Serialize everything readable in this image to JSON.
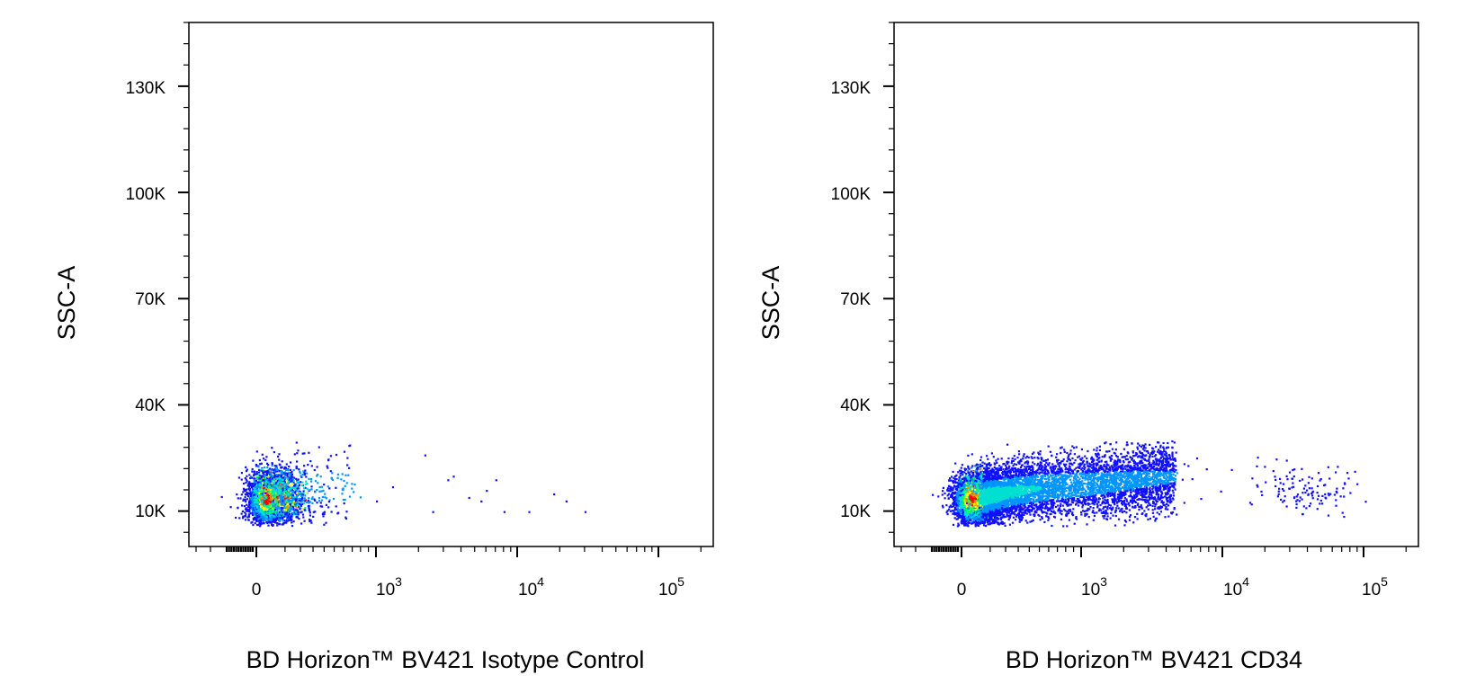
{
  "chart_data": [
    {
      "type": "scatter",
      "ylabel": "SSC-A",
      "xlabel": "BD Horizon™ BV421 Isotype Control",
      "y_ticks": [
        "130K",
        "100K",
        "70K",
        "40K",
        "10K"
      ],
      "x_ticks": [
        {
          "base": "0",
          "exp": ""
        },
        {
          "base": "10",
          "exp": "3"
        },
        {
          "base": "10",
          "exp": "4"
        },
        {
          "base": "10",
          "exp": "5"
        }
      ],
      "xscale": "biexponential",
      "ylim": [
        0,
        148000
      ],
      "colormap": [
        "#0000ff",
        "#00bfff",
        "#00ff80",
        "#ffff00",
        "#ff0000"
      ],
      "populations": [
        {
          "name": "main",
          "x_center": 15,
          "y_center": 13000,
          "x_spread": 95,
          "y_spread": 4500,
          "density": "high"
        }
      ],
      "sparse_events": [
        {
          "x": 1000,
          "y": 13000
        },
        {
          "x": 1300,
          "y": 17000
        },
        {
          "x": 2200,
          "y": 26000
        },
        {
          "x": 3200,
          "y": 19000
        },
        {
          "x": 3500,
          "y": 20000
        },
        {
          "x": 2500,
          "y": 10000
        },
        {
          "x": 4500,
          "y": 14000
        },
        {
          "x": 5500,
          "y": 13000
        },
        {
          "x": 6000,
          "y": 16000
        },
        {
          "x": 7000,
          "y": 19000
        },
        {
          "x": 8000,
          "y": 10000
        },
        {
          "x": 12000,
          "y": 10000
        },
        {
          "x": 18000,
          "y": 15000
        },
        {
          "x": 22000,
          "y": 13000
        },
        {
          "x": 30000,
          "y": 10000
        }
      ]
    },
    {
      "type": "scatter",
      "ylabel": "SSC-A",
      "xlabel": "BD Horizon™ BV421 CD34",
      "y_ticks": [
        "130K",
        "100K",
        "70K",
        "40K",
        "10K"
      ],
      "x_ticks": [
        {
          "base": "0",
          "exp": ""
        },
        {
          "base": "10",
          "exp": "3"
        },
        {
          "base": "10",
          "exp": "4"
        },
        {
          "base": "10",
          "exp": "5"
        }
      ],
      "xscale": "biexponential",
      "ylim": [
        0,
        148000
      ],
      "colormap": [
        "#0000ff",
        "#00bfff",
        "#00ff80",
        "#ffff00",
        "#ff0000"
      ],
      "populations": [
        {
          "name": "negative",
          "x_center": 15,
          "y_center": 13000,
          "x_spread": 95,
          "y_spread": 4500,
          "density": "high"
        },
        {
          "name": "smear",
          "x_from": 100,
          "x_to": 4000,
          "y_center": 18000,
          "y_spread": 5000,
          "density": "medium"
        },
        {
          "name": "cd34-bright",
          "x_center": 40000,
          "y_center": 16000,
          "y_spread": 4000,
          "density": "sparse"
        }
      ]
    }
  ]
}
